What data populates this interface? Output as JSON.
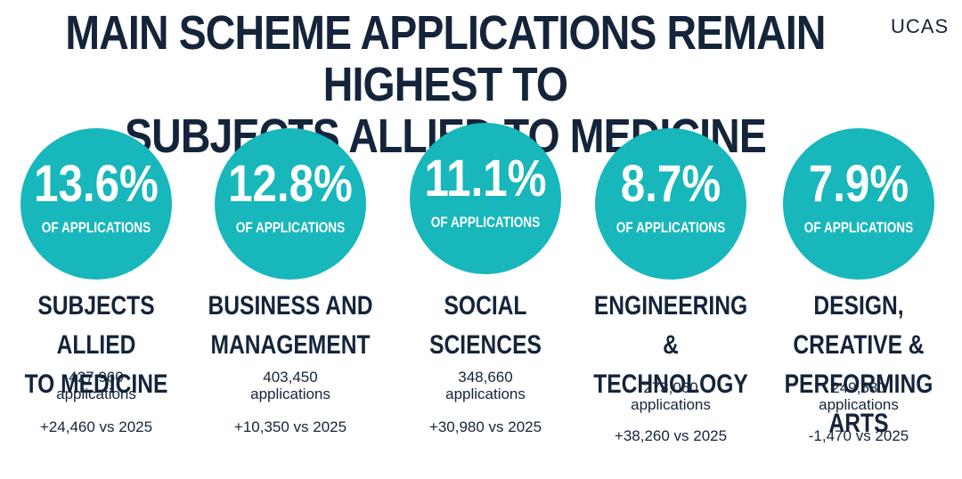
{
  "header": {
    "title_line1": "MAIN SCHEME APPLICATIONS REMAIN HIGHEST TO",
    "title_line2": "SUBJECTS ALLIED TO MEDICINE",
    "logo": "UCAS"
  },
  "colors": {
    "circle": "#17b7bb",
    "text": "#14243a"
  },
  "subjects": [
    {
      "pct": "13.6%",
      "of_label": "OF APPLICATIONS",
      "name_line1": "SUBJECTS ALLIED",
      "name_line2": "TO MEDICINE",
      "count": "427,960",
      "count_label": "applications",
      "change": "+24,460 vs 2025"
    },
    {
      "pct": "12.8%",
      "of_label": "OF APPLICATIONS",
      "name_line1": "BUSINESS AND",
      "name_line2": "MANAGEMENT",
      "count": "403,450",
      "count_label": "applications",
      "change": "+10,350 vs 2025"
    },
    {
      "pct": "11.1%",
      "of_label": "OF APPLICATIONS",
      "name_line1": "SOCIAL",
      "name_line2": "SCIENCES",
      "count": "348,660",
      "count_label": "applications",
      "change": "+30,980 vs 2025"
    },
    {
      "pct": "8.7%",
      "of_label": "OF APPLICATIONS",
      "name_line1": "ENGINEERING &",
      "name_line2": "TECHNOLOGY",
      "count": "273,060",
      "count_label": "applications",
      "change": "+38,260 vs 2025"
    },
    {
      "pct": "7.9%",
      "of_label": "OF APPLICATIONS",
      "name_line1": "DESIGN, CREATIVE &",
      "name_line2": "PERFORMING ARTS",
      "count": "249,580",
      "count_label": "applications",
      "change": "-1,470 vs 2025"
    }
  ]
}
